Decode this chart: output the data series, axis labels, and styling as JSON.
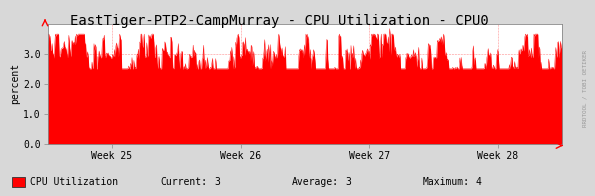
{
  "title": "EastTiger-PTP2-CampMurray - CPU Utilization - CPU0",
  "ylabel": "percent",
  "bg_color": "#d8d8d8",
  "plot_bg_color": "#ffffff",
  "grid_color": "#ff0000",
  "fill_color": "#ff0000",
  "line_color": "#ff0000",
  "ylim": [
    0,
    4.0
  ],
  "yticks": [
    0.0,
    1.0,
    2.0,
    3.0
  ],
  "xtick_labels": [
    "Week 25",
    "Week 26",
    "Week 27",
    "Week 28"
  ],
  "legend_label": "CPU Utilization",
  "current": "3",
  "average": "3",
  "maximum": "4",
  "title_fontsize": 10,
  "axis_fontsize": 7,
  "legend_fontsize": 7,
  "watermark": "RRDTOOL / TOBI OETIKER",
  "base_value": 2.85,
  "spike_amplitude": 0.7,
  "n_points": 800,
  "x_tick_positions": [
    0.125,
    0.375,
    0.625,
    0.875
  ]
}
